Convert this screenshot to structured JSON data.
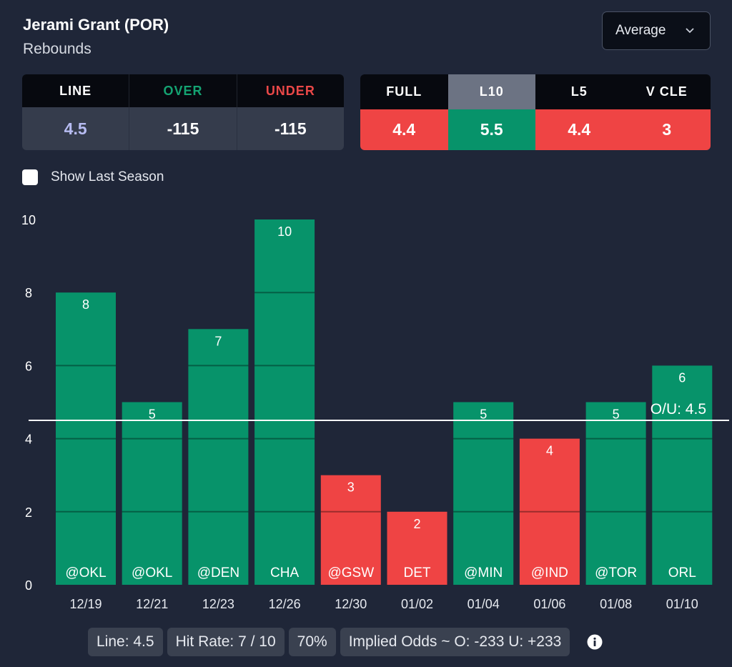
{
  "header": {
    "player_name": "Jerami Grant (POR)",
    "stat_type": "Rebounds",
    "select_value": "Average",
    "select_icon": "chevron-down-icon"
  },
  "odds": {
    "headers": [
      "LINE",
      "OVER",
      "UNDER"
    ],
    "values": [
      "4.5",
      "-115",
      "-115"
    ],
    "header_colors": [
      "#ffffff",
      "#14a372",
      "#ea4848"
    ],
    "value_colors": [
      "#b7bcf2",
      "#ffffff",
      "#ffffff"
    ]
  },
  "averages": {
    "headers": [
      "FULL",
      "L10",
      "L5",
      "V CLE"
    ],
    "values": [
      "4.4",
      "5.5",
      "4.4",
      "3"
    ],
    "active_tab": "L10",
    "value_colors": [
      "#ef4444",
      "#07936a",
      "#ef4444",
      "#ef4444"
    ]
  },
  "toggle": {
    "label": "Show Last Season",
    "checked": false
  },
  "chart_data": {
    "type": "bar",
    "categories": [
      "12/19",
      "12/21",
      "12/23",
      "12/26",
      "12/30",
      "01/02",
      "01/04",
      "01/06",
      "01/08",
      "01/10"
    ],
    "opponents": [
      "@OKL",
      "@OKL",
      "@DEN",
      "CHA",
      "@GSW",
      "DET",
      "@MIN",
      "@IND",
      "@TOR",
      "ORL"
    ],
    "values": [
      8,
      5,
      7,
      10,
      3,
      2,
      5,
      4,
      5,
      6
    ],
    "yticks": [
      0,
      2,
      4,
      6,
      8,
      10
    ],
    "ylim": [
      0,
      10
    ],
    "line": 4.5,
    "line_label": "O/U: 4.5",
    "colors": {
      "over": "#07936a",
      "under": "#ef4444"
    },
    "grid": true
  },
  "footer": {
    "line": "Line: 4.5",
    "hit_rate": "Hit Rate: 7 / 10",
    "hit_pct": "70%",
    "implied_odds": "Implied Odds ~ O: -233 U: +233",
    "info_icon": "info-icon"
  }
}
